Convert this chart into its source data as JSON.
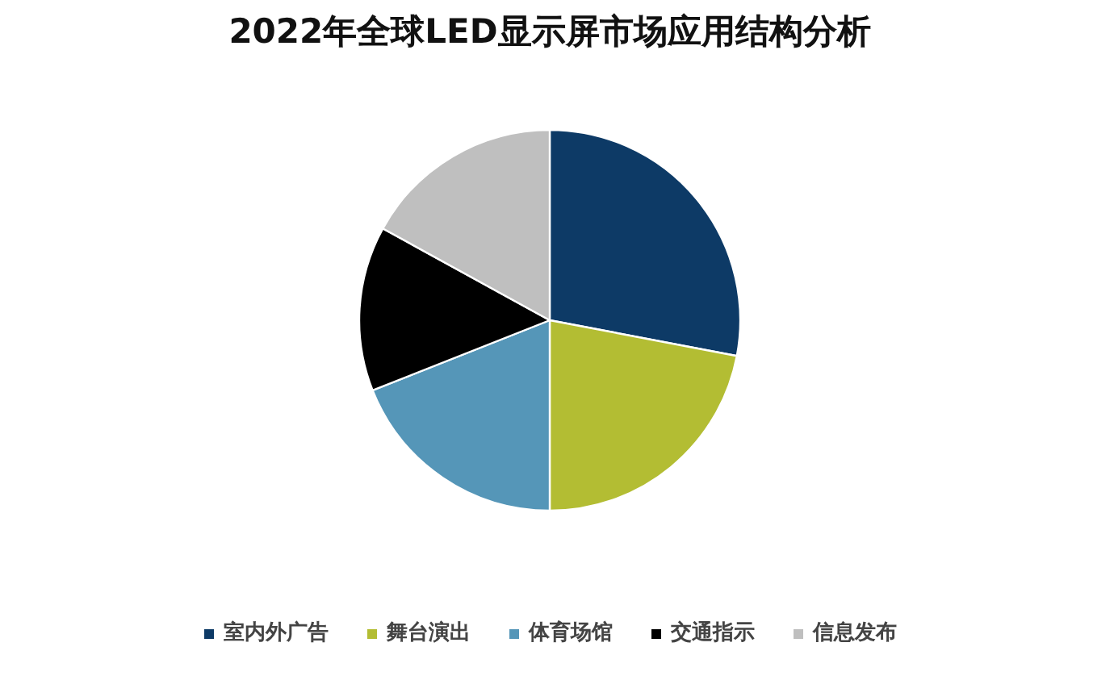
{
  "chart_data": {
    "type": "pie",
    "title": "2022年全球LED显示屏市场应用结构分析",
    "categories": [
      "室内外广告",
      "舞台演出",
      "体育场馆",
      "交通指示",
      "信息发布"
    ],
    "values": [
      28,
      22,
      19,
      14,
      17
    ],
    "colors": [
      "#0d3a66",
      "#b3bd33",
      "#5596b8",
      "#000000",
      "#bfbfbf"
    ],
    "legend": "bottom"
  }
}
